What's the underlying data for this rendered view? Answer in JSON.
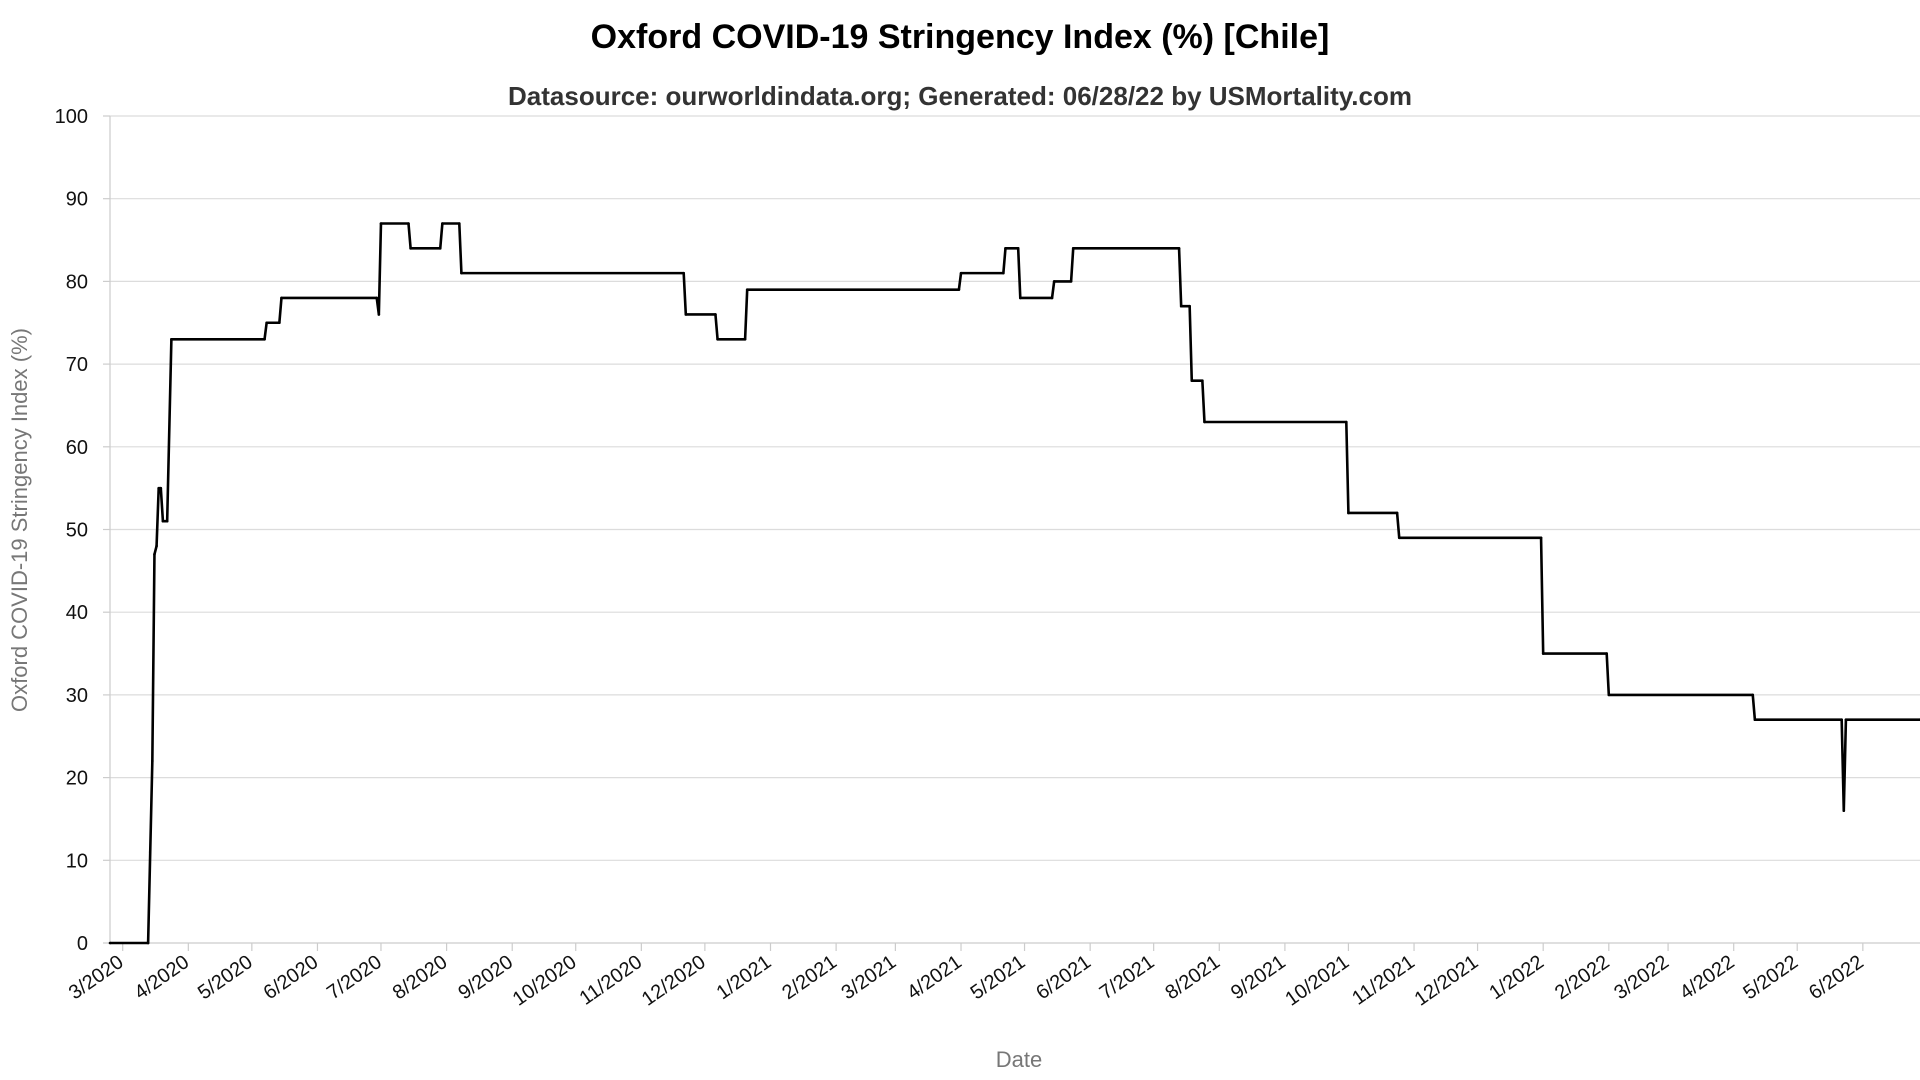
{
  "chart_data": {
    "type": "line",
    "title": "Oxford COVID-19 Stringency Index (%) [Chile]",
    "subtitle": "Datasource: ourworldindata.org; Generated: 06/28/22 by USMortality.com",
    "xlabel": "Date",
    "ylabel": "Oxford COVID-19 Stringency Index (%)",
    "ylim": [
      0,
      100
    ],
    "yticks": [
      0,
      10,
      20,
      30,
      40,
      50,
      60,
      70,
      80,
      90,
      100
    ],
    "xlim": [
      "2020-02-24",
      "2022-06-28"
    ],
    "xticks": [
      {
        "date": "2020-03-01",
        "label": "3/2020"
      },
      {
        "date": "2020-04-01",
        "label": "4/2020"
      },
      {
        "date": "2020-05-01",
        "label": "5/2020"
      },
      {
        "date": "2020-06-01",
        "label": "6/2020"
      },
      {
        "date": "2020-07-01",
        "label": "7/2020"
      },
      {
        "date": "2020-08-01",
        "label": "8/2020"
      },
      {
        "date": "2020-09-01",
        "label": "9/2020"
      },
      {
        "date": "2020-10-01",
        "label": "10/2020"
      },
      {
        "date": "2020-11-01",
        "label": "11/2020"
      },
      {
        "date": "2020-12-01",
        "label": "12/2020"
      },
      {
        "date": "2021-01-01",
        "label": "1/2021"
      },
      {
        "date": "2021-02-01",
        "label": "2/2021"
      },
      {
        "date": "2021-03-01",
        "label": "3/2021"
      },
      {
        "date": "2021-04-01",
        "label": "4/2021"
      },
      {
        "date": "2021-05-01",
        "label": "5/2021"
      },
      {
        "date": "2021-06-01",
        "label": "6/2021"
      },
      {
        "date": "2021-07-01",
        "label": "7/2021"
      },
      {
        "date": "2021-08-01",
        "label": "8/2021"
      },
      {
        "date": "2021-09-01",
        "label": "9/2021"
      },
      {
        "date": "2021-10-01",
        "label": "10/2021"
      },
      {
        "date": "2021-11-01",
        "label": "11/2021"
      },
      {
        "date": "2021-12-01",
        "label": "12/2021"
      },
      {
        "date": "2022-01-01",
        "label": "1/2022"
      },
      {
        "date": "2022-02-01",
        "label": "2/2022"
      },
      {
        "date": "2022-03-01",
        "label": "3/2022"
      },
      {
        "date": "2022-04-01",
        "label": "4/2022"
      },
      {
        "date": "2022-05-01",
        "label": "5/2022"
      },
      {
        "date": "2022-06-01",
        "label": "6/2022"
      }
    ],
    "grid": true,
    "legend": "none",
    "series": [
      {
        "color": "#000000",
        "points": [
          [
            "2020-02-24",
            0
          ],
          [
            "2020-03-13",
            0
          ],
          [
            "2020-03-14",
            11
          ],
          [
            "2020-03-15",
            22
          ],
          [
            "2020-03-16",
            47
          ],
          [
            "2020-03-17",
            48
          ],
          [
            "2020-03-18",
            55
          ],
          [
            "2020-03-19",
            55
          ],
          [
            "2020-03-20",
            51
          ],
          [
            "2020-03-22",
            51
          ],
          [
            "2020-03-24",
            73
          ],
          [
            "2020-05-07",
            73
          ],
          [
            "2020-05-08",
            75
          ],
          [
            "2020-05-14",
            75
          ],
          [
            "2020-05-15",
            78
          ],
          [
            "2020-06-29",
            78
          ],
          [
            "2020-06-30",
            76
          ],
          [
            "2020-07-01",
            87
          ],
          [
            "2020-07-14",
            87
          ],
          [
            "2020-07-15",
            84
          ],
          [
            "2020-07-29",
            84
          ],
          [
            "2020-07-30",
            87
          ],
          [
            "2020-08-07",
            87
          ],
          [
            "2020-08-08",
            81
          ],
          [
            "2020-11-21",
            81
          ],
          [
            "2020-11-22",
            76
          ],
          [
            "2020-12-06",
            76
          ],
          [
            "2020-12-07",
            73
          ],
          [
            "2020-12-20",
            73
          ],
          [
            "2020-12-21",
            79
          ],
          [
            "2021-03-31",
            79
          ],
          [
            "2021-04-01",
            81
          ],
          [
            "2021-04-21",
            81
          ],
          [
            "2021-04-22",
            84
          ],
          [
            "2021-04-28",
            84
          ],
          [
            "2021-04-29",
            78
          ],
          [
            "2021-05-14",
            78
          ],
          [
            "2021-05-15",
            80
          ],
          [
            "2021-05-23",
            80
          ],
          [
            "2021-05-24",
            84
          ],
          [
            "2021-07-13",
            84
          ],
          [
            "2021-07-14",
            77
          ],
          [
            "2021-07-18",
            77
          ],
          [
            "2021-07-19",
            68
          ],
          [
            "2021-07-24",
            68
          ],
          [
            "2021-07-25",
            63
          ],
          [
            "2021-09-30",
            63
          ],
          [
            "2021-10-01",
            52
          ],
          [
            "2021-10-24",
            52
          ],
          [
            "2021-10-25",
            49
          ],
          [
            "2021-12-31",
            49
          ],
          [
            "2022-01-01",
            35
          ],
          [
            "2022-01-31",
            35
          ],
          [
            "2022-02-01",
            30
          ],
          [
            "2022-04-10",
            30
          ],
          [
            "2022-04-11",
            27
          ],
          [
            "2022-05-22",
            27
          ],
          [
            "2022-05-23",
            16
          ],
          [
            "2022-05-24",
            27
          ],
          [
            "2022-06-28",
            27
          ]
        ]
      }
    ]
  }
}
